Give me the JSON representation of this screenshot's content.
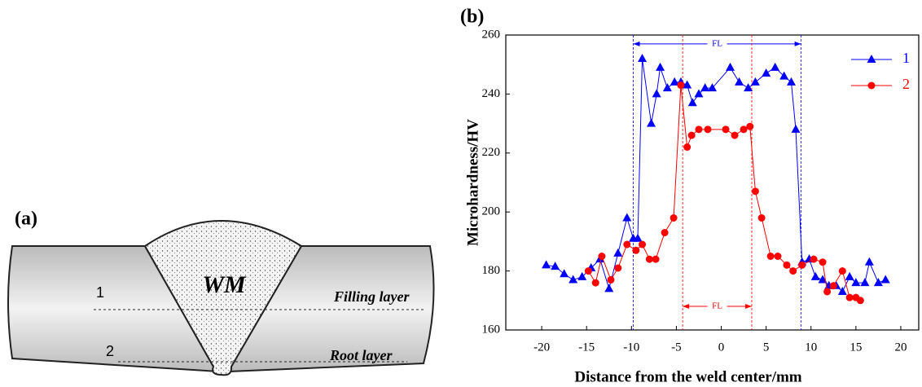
{
  "diagram": {
    "panel_label": "(a)",
    "region_label": "WM",
    "line_labels": [
      "1",
      "2"
    ],
    "layer_labels": [
      "Filling layer",
      "Root layer"
    ]
  },
  "chart_data": {
    "type": "line",
    "panel_label": "(b)",
    "x_label": "Distance from the weld center/mm",
    "y_label": "Microhardness/HV",
    "xlim": [
      -24,
      22
    ],
    "ylim": [
      160,
      260
    ],
    "xticks": [
      -20,
      -15,
      -10,
      -5,
      0,
      5,
      10,
      15,
      20
    ],
    "yticks": [
      160,
      180,
      200,
      220,
      240,
      260
    ],
    "legend": "top-right",
    "series": [
      {
        "name": "1",
        "color": "#0000ff",
        "marker": "triangle",
        "x": [
          -19.5,
          -18.5,
          -17.5,
          -16.5,
          -15.5,
          -14.5,
          -13.5,
          -12.5,
          -11.5,
          -10.5,
          -9.8,
          -9.3,
          -8.8,
          -7.8,
          -7.2,
          -6.8,
          -6,
          -5.2,
          -4.5,
          -3.8,
          -3.2,
          -2.5,
          -1.8,
          -1,
          1,
          2,
          3,
          3.8,
          5,
          6,
          7,
          7.8,
          8.3,
          9,
          9.8,
          10.5,
          11.3,
          12,
          12.8,
          13.5,
          14.3,
          15,
          16,
          16.5,
          17.5,
          18.3
        ],
        "values": [
          182,
          181.5,
          179,
          177,
          178,
          181,
          184,
          174,
          186,
          198,
          191,
          191,
          252,
          230,
          240,
          249,
          242,
          244,
          244,
          243,
          237,
          240,
          242,
          242,
          249,
          244,
          242,
          244,
          247,
          249,
          246,
          244,
          228,
          183,
          184,
          178,
          177,
          175,
          175,
          173,
          178,
          176,
          176,
          183,
          176,
          177
        ]
      },
      {
        "name": "2",
        "color": "#ff0000",
        "marker": "circle",
        "x": [
          -14.8,
          -14,
          -13.3,
          -12.3,
          -11.5,
          -10.5,
          -9.5,
          -8.8,
          -8,
          -7.3,
          -6.3,
          -5.3,
          -4.5,
          -3.8,
          -3.3,
          -2.5,
          -1.5,
          0.5,
          1.5,
          2.5,
          3.2,
          3.8,
          4.5,
          5.5,
          6.3,
          7.3,
          8,
          9,
          10.3,
          11.3,
          11.8,
          12.5,
          13.5,
          14.3,
          15,
          15.5
        ],
        "values": [
          180,
          176,
          185,
          177,
          181,
          189,
          187,
          189,
          184,
          184,
          193,
          198,
          243,
          222,
          226,
          228,
          228,
          228,
          226,
          228,
          229,
          207,
          198,
          185,
          185,
          182,
          180,
          182,
          184,
          183,
          173,
          175,
          180,
          171,
          171,
          170
        ]
      }
    ],
    "annotations": [
      {
        "text": "FL",
        "color": "#0000ff",
        "x": [
          -9.8,
          8.9
        ],
        "y": 257
      },
      {
        "text": "FL",
        "color": "#ff0000",
        "x": [
          -4.3,
          3.4
        ],
        "y": 168
      }
    ]
  }
}
